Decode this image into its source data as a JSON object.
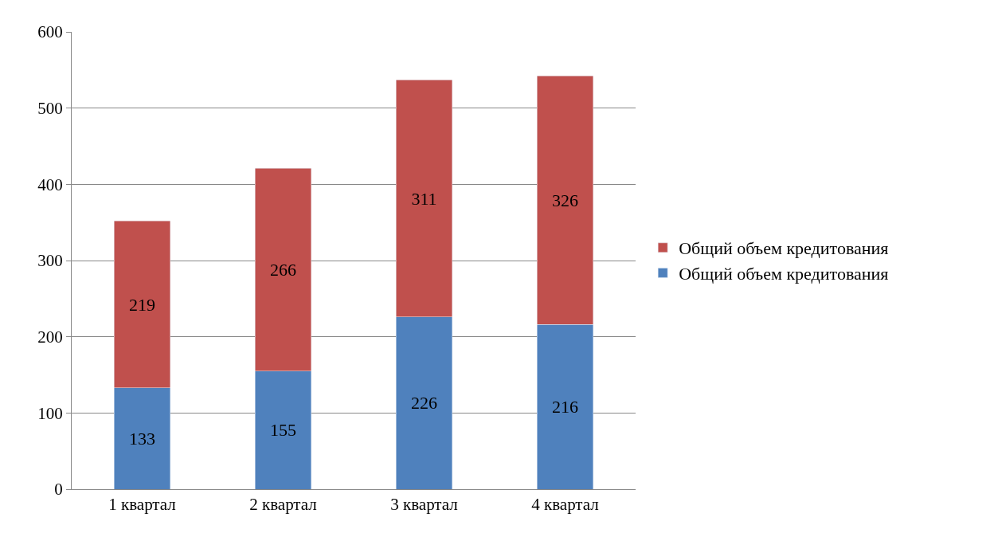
{
  "chart_data": {
    "type": "bar",
    "stacked": true,
    "categories": [
      "1 квартал",
      "2 квартал",
      "3 квартал",
      "4 квартал"
    ],
    "series": [
      {
        "name": "Общий объем кредитования",
        "color": "#4f81bd",
        "values": [
          133,
          155,
          226,
          216
        ]
      },
      {
        "name": "Общий объем кредитования",
        "color": "#c0504d",
        "values": [
          219,
          266,
          311,
          326
        ]
      }
    ],
    "ylim": [
      0,
      600
    ],
    "yticks": [
      0,
      100,
      200,
      300,
      400,
      500,
      600
    ],
    "grid": "y",
    "legend": "right",
    "data_labels": true
  }
}
